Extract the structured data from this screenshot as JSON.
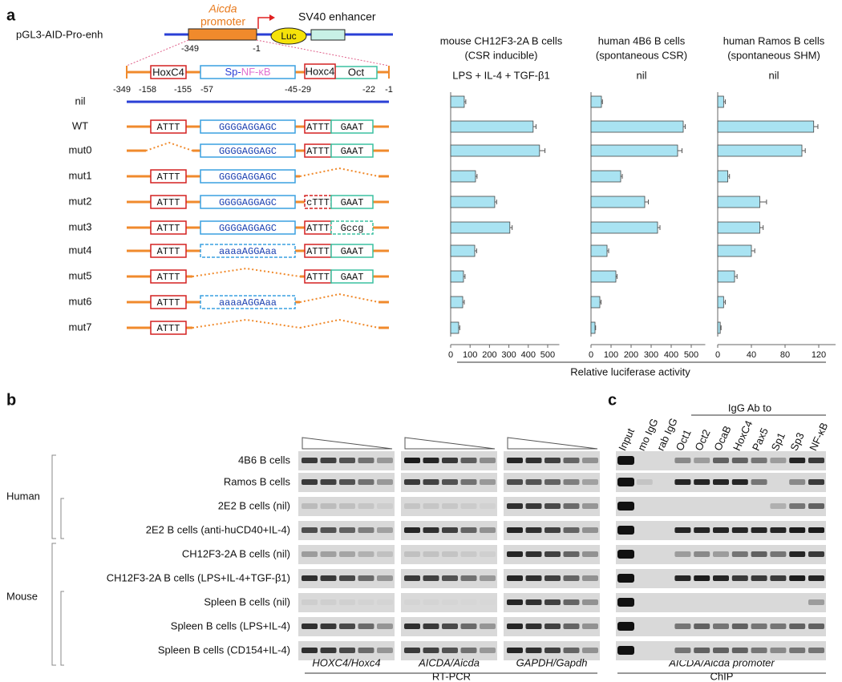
{
  "panel_labels": [
    "a",
    "b",
    "c"
  ],
  "construct": {
    "name": "pGL3-AID-Pro-enh",
    "promoter_gene": "Aicda",
    "promoter": "promoter",
    "reporter": "Luc",
    "enhancer": "SV40 enhancer",
    "start": "-349",
    "end": "-1"
  },
  "elements": {
    "hox": "HoxC4",
    "sp": "Sp-",
    "nfkb": "NF-κB",
    "hox2": "Hoxc4",
    "oct": "Oct"
  },
  "positions": [
    "-349",
    "-158",
    "-155",
    "-57",
    "-45",
    "-29",
    "-22",
    "-1"
  ],
  "constructs": [
    {
      "label": "nil"
    },
    {
      "label": "WT",
      "hox": "ATTT",
      "sp": "GGGGAGGAGC",
      "hox2": "ATTT",
      "oct": "GAAT"
    },
    {
      "label": "mut0",
      "sp": "GGGGAGGAGC",
      "hox2": "ATTT",
      "oct": "GAAT"
    },
    {
      "label": "mut1",
      "hox": "ATTT",
      "sp": "GGGGAGGAGC"
    },
    {
      "label": "mut2",
      "hox": "ATTT",
      "sp": "GGGGAGGAGC",
      "hox2": "cTTT",
      "oct": "GAAT",
      "mutated": [
        "hox2"
      ]
    },
    {
      "label": "mut3",
      "hox": "ATTT",
      "sp": "GGGGAGGAGC",
      "hox2": "ATTT",
      "oct": "Gccg",
      "mutated": [
        "oct"
      ]
    },
    {
      "label": "mut4",
      "hox": "ATTT",
      "sp": "aaaaAGGAaa",
      "hox2": "ATTT",
      "oct": "GAAT",
      "mutated": [
        "sp"
      ]
    },
    {
      "label": "mut5",
      "hox": "ATTT",
      "hox2": "ATTT",
      "oct": "GAAT"
    },
    {
      "label": "mut6",
      "hox": "ATTT",
      "sp": "aaaaAGGAaa",
      "mutated": [
        "sp"
      ]
    },
    {
      "label": "mut7",
      "hox": "ATTT"
    }
  ],
  "chart_data": [
    {
      "type": "bar",
      "orientation": "horizontal",
      "title": "mouse CH12F3-2A B cells",
      "subtitle": "(CSR inducible)",
      "condition": "LPS + IL-4 + TGF-β1",
      "values": [
        70,
        425,
        458,
        128,
        227,
        305,
        124,
        66,
        62,
        41
      ],
      "errors": [
        8,
        15,
        28,
        8,
        10,
        12,
        10,
        8,
        8,
        6
      ],
      "xlim": [
        0,
        560
      ],
      "xticks": [
        0,
        100,
        200,
        300,
        400,
        500
      ],
      "color": "#a9e3f2"
    },
    {
      "type": "bar",
      "orientation": "horizontal",
      "title": "human 4B6 B cells",
      "subtitle": "(spontaneous CSR)",
      "condition": "nil",
      "values": [
        52,
        460,
        432,
        148,
        268,
        332,
        80,
        124,
        44,
        20
      ],
      "errors": [
        5,
        10,
        22,
        8,
        18,
        12,
        8,
        6,
        6,
        3
      ],
      "xlim": [
        0,
        570
      ],
      "xticks": [
        0,
        100,
        200,
        300,
        400,
        500
      ],
      "color": "#a9e3f2"
    },
    {
      "type": "bar",
      "orientation": "horizontal",
      "title": "human Ramos B cells",
      "subtitle": "(spontaneous SHM)",
      "condition": "nil",
      "values": [
        7,
        114,
        100,
        12,
        50,
        50,
        40,
        20,
        7,
        3
      ],
      "errors": [
        2,
        5,
        4,
        2,
        8,
        4,
        4,
        3,
        2,
        1
      ],
      "xlim": [
        0,
        140
      ],
      "xticks": [
        0,
        40,
        80,
        120
      ],
      "color": "#a9e3f2"
    }
  ],
  "xlabel": "Relative luciferase activity",
  "rtpcr": {
    "species": [
      "Human",
      "Mouse"
    ],
    "samples": [
      "4B6 B cells",
      "Ramos B cells",
      "2E2 B cells (nil)",
      "2E2 B cells (anti-huCD40+IL-4)",
      "CH12F3-2A B cells (nil)",
      "CH12F3-2A B cells (LPS+IL-4+TGF-β1)",
      "Spleen B cells (nil)",
      "Spleen B cells (LPS+IL-4)",
      "Spleen B cells (CD154+IL-4)"
    ],
    "genes": [
      "HOXC4/Hoxc4",
      "AICDA/Aicda",
      "GAPDH/Gapdh"
    ],
    "method": "RT-PCR"
  },
  "chip": {
    "lanes": [
      "Input",
      "mo IgG",
      "rab IgG",
      "Oct1",
      "Oct2",
      "OcaB",
      "HoxC4",
      "Pax5",
      "Sp1",
      "Sp3",
      "NF-κB"
    ],
    "antibody_header": "IgG Ab to",
    "target": "AICDA/Aicda promoter",
    "method": "ChIP"
  }
}
